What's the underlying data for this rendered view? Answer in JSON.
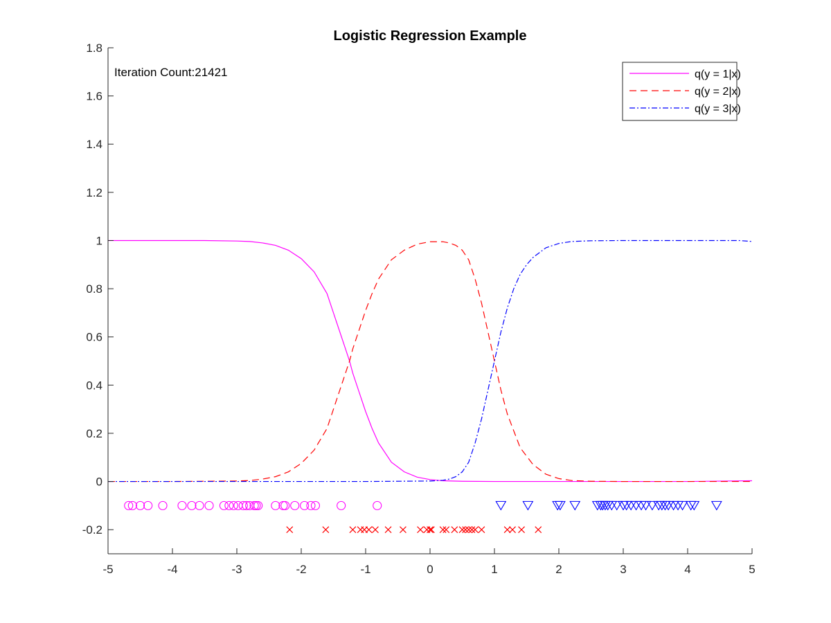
{
  "chart_data": {
    "type": "line",
    "title": "Logistic Regression Example",
    "annotation": "Iteration Count:21421",
    "xlabel": "",
    "ylabel": "",
    "xlim": [
      -5,
      5
    ],
    "ylim": [
      -0.3,
      1.8
    ],
    "xticks": [
      "-5",
      "-4",
      "-3",
      "-2",
      "-1",
      "0",
      "1",
      "2",
      "3",
      "4",
      "5"
    ],
    "yticks": [
      "-0.2",
      "0",
      "0.2",
      "0.4",
      "0.6",
      "0.8",
      "1",
      "1.2",
      "1.4",
      "1.6",
      "1.8"
    ],
    "grid": false,
    "legend_position": "top-right",
    "series": [
      {
        "name": "q(y = 1|x)",
        "color": "#ff00ff",
        "style": "solid",
        "x": [
          -5,
          -4.5,
          -4,
          -3.5,
          -3,
          -2.8,
          -2.6,
          -2.4,
          -2.2,
          -2,
          -1.8,
          -1.6,
          -1.5,
          -1.4,
          -1.3,
          -1.25,
          -1.2,
          -1.1,
          -1,
          -0.9,
          -0.8,
          -0.6,
          -0.4,
          -0.2,
          0,
          0.2,
          0.5,
          1,
          2,
          3,
          4,
          5
        ],
        "y": [
          1,
          1,
          1,
          1,
          0.998,
          0.996,
          0.99,
          0.98,
          0.96,
          0.925,
          0.87,
          0.78,
          0.7,
          0.62,
          0.54,
          0.5,
          0.45,
          0.37,
          0.29,
          0.22,
          0.16,
          0.08,
          0.04,
          0.018,
          0.008,
          0.003,
          0.001,
          0,
          0,
          0,
          0,
          0.003
        ]
      },
      {
        "name": "q(y = 2|x)",
        "color": "#ff0000",
        "style": "dashed",
        "x": [
          -5,
          -4,
          -3,
          -2.8,
          -2.6,
          -2.4,
          -2.2,
          -2,
          -1.8,
          -1.6,
          -1.5,
          -1.4,
          -1.3,
          -1.25,
          -1.2,
          -1.1,
          -1,
          -0.9,
          -0.8,
          -0.6,
          -0.4,
          -0.2,
          0,
          0.2,
          0.3,
          0.4,
          0.5,
          0.6,
          0.7,
          0.8,
          0.9,
          1,
          1.1,
          1.2,
          1.4,
          1.6,
          1.8,
          2,
          2.2,
          2.5,
          3,
          4,
          5
        ],
        "y": [
          0,
          0,
          0.002,
          0.004,
          0.01,
          0.02,
          0.04,
          0.075,
          0.13,
          0.22,
          0.3,
          0.38,
          0.46,
          0.5,
          0.55,
          0.63,
          0.71,
          0.78,
          0.84,
          0.92,
          0.96,
          0.985,
          0.995,
          0.995,
          0.99,
          0.98,
          0.96,
          0.92,
          0.84,
          0.74,
          0.62,
          0.5,
          0.38,
          0.28,
          0.14,
          0.07,
          0.03,
          0.012,
          0.004,
          0.001,
          0,
          0,
          0
        ]
      },
      {
        "name": "q(y = 3|x)",
        "color": "#0000ff",
        "style": "dashdot",
        "x": [
          -5,
          -3,
          -1,
          0,
          0.2,
          0.3,
          0.4,
          0.5,
          0.6,
          0.7,
          0.8,
          0.9,
          1,
          1.1,
          1.2,
          1.3,
          1.4,
          1.5,
          1.6,
          1.8,
          2,
          2.2,
          2.5,
          3,
          4,
          4.8,
          5
        ],
        "y": [
          0,
          0,
          0,
          0.002,
          0.005,
          0.01,
          0.02,
          0.04,
          0.08,
          0.16,
          0.26,
          0.38,
          0.5,
          0.62,
          0.72,
          0.8,
          0.86,
          0.9,
          0.93,
          0.97,
          0.988,
          0.996,
          0.999,
          1,
          1,
          1,
          0.996
        ]
      }
    ],
    "scatter_series": [
      {
        "marker": "circle",
        "color": "#ff00ff",
        "y": -0.1,
        "x": [
          -4.68,
          -4.62,
          -4.5,
          -4.38,
          -4.15,
          -3.85,
          -3.7,
          -3.58,
          -3.43,
          -3.2,
          -3.12,
          -3.05,
          -2.98,
          -2.9,
          -2.85,
          -2.8,
          -2.73,
          -2.7,
          -2.67,
          -2.4,
          -2.28,
          -2.25,
          -2.1,
          -1.95,
          -1.85,
          -1.78,
          -1.38,
          -0.82
        ]
      },
      {
        "marker": "x",
        "color": "#ff0000",
        "y": -0.2,
        "x": [
          -2.18,
          -1.62,
          -1.2,
          -1.08,
          -1.02,
          -0.95,
          -0.85,
          -0.65,
          -0.42,
          -0.15,
          -0.05,
          0,
          0.02,
          0.2,
          0.25,
          0.38,
          0.5,
          0.55,
          0.6,
          0.65,
          0.7,
          0.8,
          1.2,
          1.28,
          1.42,
          1.68
        ]
      },
      {
        "marker": "triangle-down",
        "color": "#0000ff",
        "y": -0.1,
        "x": [
          1.1,
          1.52,
          1.98,
          2.02,
          2.25,
          2.6,
          2.65,
          2.68,
          2.72,
          2.76,
          2.82,
          2.9,
          3.0,
          3.05,
          3.12,
          3.2,
          3.28,
          3.35,
          3.45,
          3.55,
          3.6,
          3.65,
          3.7,
          3.78,
          3.85,
          3.92,
          4.05,
          4.1,
          4.45
        ]
      }
    ]
  }
}
